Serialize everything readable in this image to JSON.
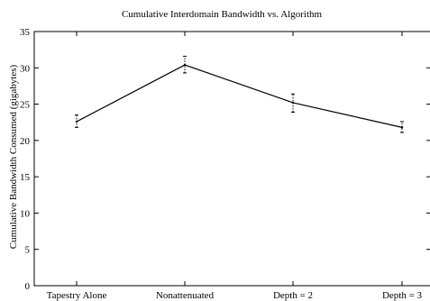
{
  "chart_data": {
    "type": "line",
    "title": "Cumulative Interdomain Bandwidth vs. Algorithm",
    "xlabel": "",
    "ylabel": "Cumulative Bandwidth Consumed (gigabytes)",
    "categories": [
      "Tapestry Alone",
      "Nonattenuated",
      "Depth = 2",
      "Depth = 3"
    ],
    "series": [
      {
        "values": [
          22.6,
          30.4,
          25.2,
          21.8
        ],
        "error_low": [
          21.8,
          29.3,
          23.9,
          21.1
        ],
        "error_high": [
          23.5,
          31.6,
          26.4,
          22.6
        ]
      }
    ],
    "ylim": [
      0,
      35
    ],
    "yticks": [
      0,
      5,
      10,
      15,
      20,
      25,
      30,
      35
    ],
    "grid": false,
    "legend": "none"
  }
}
